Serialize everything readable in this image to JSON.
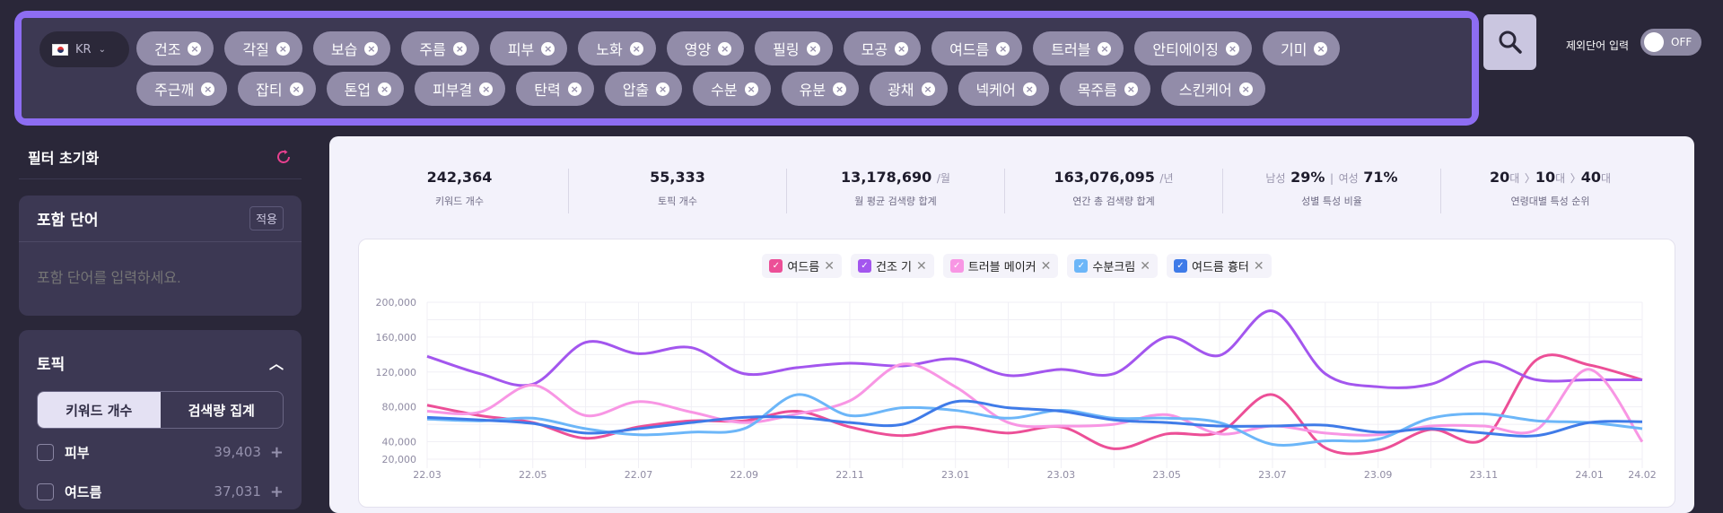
{
  "search": {
    "country": "KR",
    "chips_row1": [
      "건조",
      "각질",
      "보습",
      "주름",
      "피부",
      "노화",
      "영양",
      "필링",
      "모공",
      "여드름",
      "트러블",
      "안티에이징",
      "기미"
    ],
    "chips_row2": [
      "주근깨",
      "잡티",
      "톤업",
      "피부결",
      "탄력",
      "압출",
      "수분",
      "유분",
      "광채",
      "넥케어",
      "목주름",
      "스킨케어"
    ],
    "exclude_label": "제외단어 입력",
    "toggle_state": "OFF"
  },
  "sidebar": {
    "reset_label": "필터 초기화",
    "include": {
      "title": "포함 단어",
      "apply": "적용",
      "placeholder": "포함 단어를 입력하세요."
    },
    "topic": {
      "title": "토픽",
      "seg": [
        "키워드 개수",
        "검색량 집계"
      ],
      "items": [
        {
          "label": "피부",
          "count": "39,403"
        },
        {
          "label": "여드름",
          "count": "37,031"
        }
      ]
    }
  },
  "stats": [
    {
      "value": "242,364",
      "unit": "",
      "label": "키워드 개수"
    },
    {
      "value": "55,333",
      "unit": "",
      "label": "토픽 개수"
    },
    {
      "value": "13,178,690",
      "unit": "/월",
      "label": "월 평균 검색량 합계"
    },
    {
      "value": "163,076,095",
      "unit": "/년",
      "label": "연간 총 검색량 합계"
    }
  ],
  "gender": {
    "male_label": "남성",
    "male": "29%",
    "female_label": "여성",
    "female": "71%",
    "label": "성별 특성 비율"
  },
  "age": {
    "r1": "20",
    "r2": "10",
    "r3": "40",
    "suffix": "대",
    "label": "연령대별 특성 순위"
  },
  "chart_data": {
    "type": "line",
    "ylim": [
      20000,
      200000
    ],
    "yticks": [
      20000,
      40000,
      80000,
      120000,
      160000,
      200000
    ],
    "ytick_labels": [
      "20,000",
      "40,000",
      "80,000",
      "120,000",
      "160,000",
      "200,000"
    ],
    "grid": true,
    "legend": "top",
    "x": [
      "22.03",
      "22.04",
      "22.05",
      "22.06",
      "22.07",
      "22.08",
      "22.09",
      "22.10",
      "22.11",
      "22.12",
      "23.01",
      "23.02",
      "23.03",
      "23.04",
      "23.05",
      "23.06",
      "23.07",
      "23.08",
      "23.09",
      "23.10",
      "23.11",
      "23.12",
      "24.01",
      "24.02"
    ],
    "xtick_labels": [
      "22.03",
      "22.05",
      "22.07",
      "22.09",
      "22.11",
      "23.01",
      "23.03",
      "23.05",
      "23.07",
      "23.09",
      "23.11",
      "24.01",
      "24.02"
    ],
    "series": [
      {
        "name": "여드름",
        "color": "#ec4f97",
        "values": [
          82000,
          70000,
          62000,
          44000,
          57000,
          64000,
          64000,
          75000,
          57000,
          47000,
          57000,
          50000,
          57000,
          32000,
          49000,
          51000,
          94000,
          33000,
          30000,
          54000,
          43000,
          134000,
          128000,
          111000
        ]
      },
      {
        "name": "건조 기",
        "color": "#a356ee",
        "values": [
          138000,
          118000,
          106000,
          154000,
          141000,
          148000,
          118000,
          125000,
          130000,
          127000,
          135000,
          116000,
          123000,
          118000,
          160000,
          139000,
          190000,
          118000,
          103000,
          106000,
          132000,
          111000,
          111000,
          111000
        ]
      },
      {
        "name": "트러블 메이커",
        "color": "#f896e4",
        "values": [
          75000,
          74000,
          105000,
          70000,
          86000,
          74000,
          62000,
          72000,
          87000,
          129000,
          103000,
          62000,
          58000,
          60000,
          71000,
          49000,
          58000,
          50000,
          48000,
          58000,
          58000,
          54000,
          123000,
          40000
        ]
      },
      {
        "name": "수분크림",
        "color": "#6cb6f8",
        "values": [
          66000,
          64000,
          67000,
          55000,
          48000,
          51000,
          55000,
          94000,
          70000,
          79000,
          76000,
          67000,
          76000,
          67000,
          67000,
          62000,
          37000,
          41000,
          43000,
          67000,
          72000,
          64000,
          62000,
          55000
        ]
      },
      {
        "name": "여드름 흉터",
        "color": "#3f7be8",
        "values": [
          68000,
          65000,
          61000,
          50000,
          55000,
          62000,
          68000,
          68000,
          62000,
          60000,
          86000,
          79000,
          75000,
          65000,
          62000,
          58000,
          58000,
          59000,
          51000,
          55000,
          50000,
          47000,
          62000,
          63000
        ]
      }
    ]
  }
}
